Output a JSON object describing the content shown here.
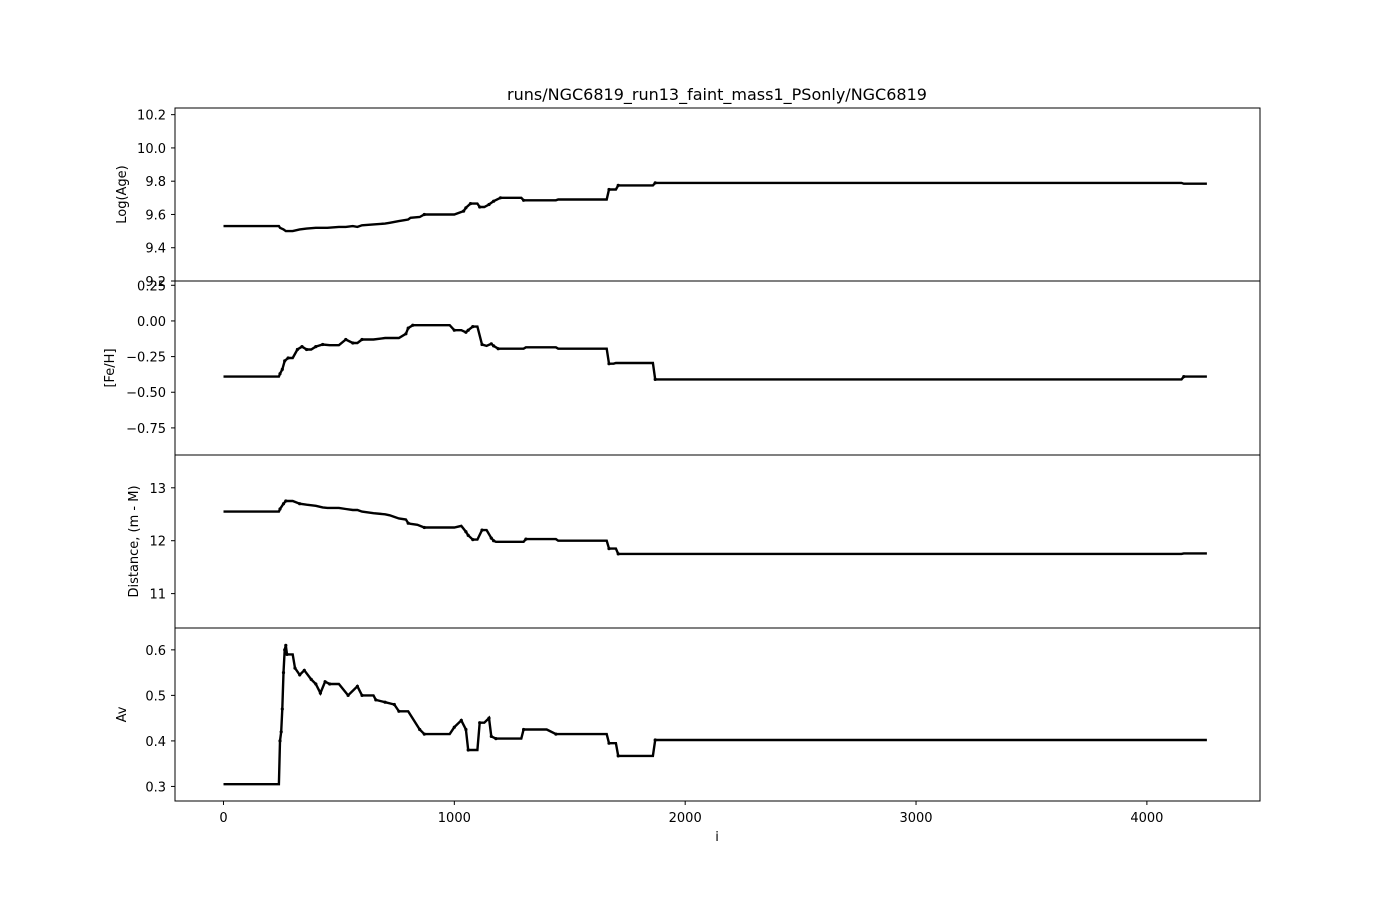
{
  "title": "runs/NGC6819_run13_faint_mass1_PSonly/NGC6819",
  "xlabel": "i",
  "x_ticks": [
    "0",
    "1000",
    "2000",
    "3000",
    "4000"
  ],
  "chart_data": [
    {
      "type": "line",
      "ylabel": "Log(Age)",
      "xlim": [
        -210,
        4490
      ],
      "ylim": [
        9.2,
        10.24
      ],
      "grid": false,
      "y_ticks": [
        "9.2",
        "9.4",
        "9.6",
        "9.8",
        "10.0",
        "10.2"
      ],
      "y_tick_values": [
        9.2,
        9.4,
        9.6,
        9.8,
        10.0,
        10.2
      ],
      "series": [
        {
          "x": [
            0,
            240,
            245,
            260,
            270,
            300,
            330,
            360,
            400,
            450,
            500,
            530,
            560,
            580,
            600,
            650,
            700,
            720,
            740,
            760,
            780,
            800,
            810,
            850,
            870,
            1000,
            1040,
            1050,
            1070,
            1100,
            1110,
            1130,
            1150,
            1170,
            1200,
            1290,
            1300,
            1440,
            1450,
            1660,
            1670,
            1700,
            1710,
            1860,
            1870,
            4150,
            4160,
            4260
          ],
          "y": [
            9.53,
            9.53,
            9.52,
            9.51,
            9.5,
            9.5,
            9.51,
            9.515,
            9.52,
            9.52,
            9.525,
            9.525,
            9.53,
            9.525,
            9.535,
            9.54,
            9.545,
            9.55,
            9.555,
            9.56,
            9.565,
            9.57,
            9.58,
            9.585,
            9.6,
            9.6,
            9.62,
            9.64,
            9.665,
            9.665,
            9.645,
            9.645,
            9.66,
            9.68,
            9.7,
            9.7,
            9.685,
            9.685,
            9.69,
            9.69,
            9.75,
            9.75,
            9.775,
            9.775,
            9.79,
            9.79,
            9.785,
            9.785
          ]
        }
      ]
    },
    {
      "type": "line",
      "ylabel": "[Fe/H]",
      "xlim": [
        -210,
        4490
      ],
      "ylim": [
        -0.94,
        0.28
      ],
      "grid": false,
      "y_ticks": [
        "0.25",
        "0.00",
        "−0.25",
        "−0.50",
        "−0.75"
      ],
      "y_tick_values": [
        0.25,
        0.0,
        -0.25,
        -0.5,
        -0.75
      ],
      "series": [
        {
          "x": [
            0,
            240,
            245,
            255,
            265,
            280,
            300,
            320,
            340,
            360,
            380,
            400,
            430,
            460,
            500,
            530,
            560,
            580,
            600,
            650,
            700,
            730,
            760,
            790,
            800,
            820,
            850,
            870,
            980,
            1000,
            1030,
            1050,
            1060,
            1080,
            1100,
            1120,
            1140,
            1160,
            1170,
            1190,
            1300,
            1310,
            1440,
            1450,
            1660,
            1670,
            1690,
            1700,
            1860,
            1870,
            4150,
            4160,
            4260
          ],
          "y": [
            -0.39,
            -0.39,
            -0.37,
            -0.34,
            -0.28,
            -0.26,
            -0.26,
            -0.2,
            -0.18,
            -0.2,
            -0.2,
            -0.18,
            -0.165,
            -0.17,
            -0.17,
            -0.13,
            -0.155,
            -0.155,
            -0.13,
            -0.13,
            -0.12,
            -0.12,
            -0.12,
            -0.09,
            -0.05,
            -0.03,
            -0.03,
            -0.03,
            -0.03,
            -0.065,
            -0.065,
            -0.08,
            -0.065,
            -0.04,
            -0.04,
            -0.165,
            -0.175,
            -0.16,
            -0.175,
            -0.195,
            -0.195,
            -0.185,
            -0.185,
            -0.195,
            -0.195,
            -0.3,
            -0.3,
            -0.295,
            -0.295,
            -0.41,
            -0.41,
            -0.39,
            -0.39
          ]
        }
      ]
    },
    {
      "type": "line",
      "ylabel": "Distance, (m - M)",
      "xlim": [
        -210,
        4490
      ],
      "ylim": [
        10.35,
        13.62
      ],
      "grid": false,
      "y_ticks": [
        "11",
        "12",
        "13"
      ],
      "y_tick_values": [
        11,
        12,
        13
      ],
      "series": [
        {
          "x": [
            0,
            240,
            245,
            260,
            270,
            300,
            330,
            360,
            400,
            430,
            450,
            500,
            530,
            560,
            580,
            600,
            650,
            700,
            720,
            740,
            760,
            790,
            800,
            810,
            840,
            870,
            1000,
            1030,
            1050,
            1060,
            1080,
            1100,
            1120,
            1140,
            1160,
            1170,
            1180,
            1300,
            1310,
            1440,
            1450,
            1660,
            1670,
            1700,
            1710,
            4150,
            4160,
            4260
          ],
          "y": [
            12.55,
            12.55,
            12.6,
            12.7,
            12.75,
            12.75,
            12.7,
            12.68,
            12.66,
            12.63,
            12.62,
            12.62,
            12.6,
            12.58,
            12.58,
            12.55,
            12.52,
            12.5,
            12.48,
            12.45,
            12.42,
            12.4,
            12.33,
            12.32,
            12.3,
            12.25,
            12.25,
            12.28,
            12.17,
            12.1,
            12.02,
            12.02,
            12.2,
            12.2,
            12.05,
            12.0,
            11.98,
            11.98,
            12.03,
            12.03,
            12.0,
            12.0,
            11.85,
            11.85,
            11.75,
            11.75,
            11.76,
            11.76
          ]
        }
      ]
    },
    {
      "type": "line",
      "ylabel": "Av",
      "xlim": [
        -210,
        4490
      ],
      "ylim": [
        0.268,
        0.648
      ],
      "grid": false,
      "y_ticks": [
        "0.3",
        "0.4",
        "0.5",
        "0.6"
      ],
      "y_tick_values": [
        0.3,
        0.4,
        0.5,
        0.6
      ],
      "series": [
        {
          "x": [
            0,
            240,
            245,
            250,
            255,
            260,
            265,
            270,
            275,
            300,
            310,
            330,
            350,
            380,
            400,
            420,
            440,
            460,
            500,
            540,
            580,
            600,
            650,
            660,
            700,
            740,
            760,
            800,
            850,
            870,
            980,
            1000,
            1030,
            1050,
            1060,
            1080,
            1100,
            1110,
            1130,
            1150,
            1160,
            1180,
            1290,
            1300,
            1400,
            1440,
            1450,
            1660,
            1670,
            1700,
            1710,
            1860,
            1870,
            4150,
            4160,
            4260
          ],
          "y": [
            0.305,
            0.305,
            0.4,
            0.42,
            0.47,
            0.55,
            0.6,
            0.61,
            0.59,
            0.59,
            0.56,
            0.545,
            0.555,
            0.535,
            0.525,
            0.505,
            0.53,
            0.525,
            0.525,
            0.5,
            0.52,
            0.5,
            0.5,
            0.49,
            0.485,
            0.48,
            0.465,
            0.465,
            0.425,
            0.415,
            0.415,
            0.43,
            0.445,
            0.425,
            0.38,
            0.38,
            0.38,
            0.44,
            0.44,
            0.45,
            0.41,
            0.405,
            0.405,
            0.425,
            0.425,
            0.415,
            0.415,
            0.415,
            0.395,
            0.395,
            0.367,
            0.367,
            0.402,
            0.402,
            0.402,
            0.402
          ]
        }
      ]
    }
  ]
}
